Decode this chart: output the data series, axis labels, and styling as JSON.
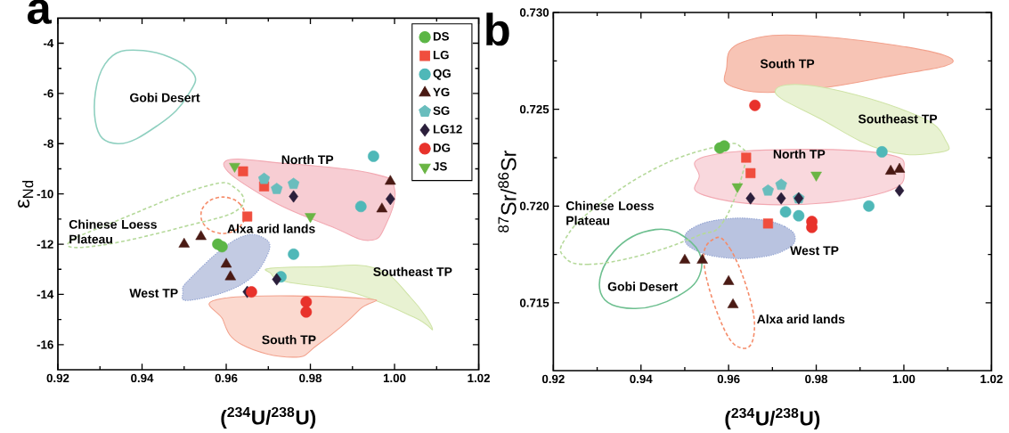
{
  "chart_data": [
    {
      "type": "scatter",
      "title": "a",
      "xlabel": "($^{234}$U/$^{238}$U)",
      "ylabel": "ε$_{Nd}$",
      "xlim": [
        0.92,
        1.02
      ],
      "ylim": [
        -17,
        -3
      ],
      "xticks": [
        0.92,
        0.94,
        0.96,
        0.98,
        {
          "value": 1,
          "label": "1.00"
        },
        1.02
      ],
      "yticks": [
        -16,
        -14,
        -12,
        -10,
        -8,
        -6,
        -4
      ],
      "legend": "top right",
      "annotations": [
        "Gobi Desert",
        "North TP",
        "Chinese Loess Plateau",
        "Alxa arid lands",
        "Southeast TP",
        "West TP",
        "South TP"
      ],
      "series": [
        {
          "name": "DS",
          "color": "#5cb646",
          "marker": "circle",
          "x": [
            0.958,
            0.959
          ],
          "values": [
            -12.0,
            -12.1
          ]
        },
        {
          "name": "LG",
          "color": "#f04e3e",
          "marker": "square",
          "x": [
            0.964,
            0.969,
            0.965
          ],
          "values": [
            -9.1,
            -9.7,
            -10.9
          ]
        },
        {
          "name": "QG",
          "color": "#4fb8b8",
          "marker": "circle",
          "x": [
            0.995,
            0.992,
            0.976,
            0.973
          ],
          "values": [
            -8.5,
            -10.5,
            -12.4,
            -13.3
          ]
        },
        {
          "name": "YG",
          "color": "#4a1a14",
          "marker": "triangle",
          "x": [
            0.999,
            0.997,
            0.95,
            0.954,
            0.96,
            0.961
          ],
          "values": [
            -9.5,
            -10.6,
            -12.0,
            -11.7,
            -12.8,
            -13.3
          ]
        },
        {
          "name": "SG",
          "color": "#69bdbd",
          "x": [
            0.969,
            0.972,
            0.976
          ],
          "values": [
            -9.4,
            -9.8,
            -9.6
          ]
        },
        {
          "name": "LG12",
          "color": "#2b1f3b",
          "marker": "diamond",
          "x": [
            0.976,
            0.999,
            0.965,
            0.972
          ],
          "values": [
            -10.1,
            -10.2,
            -13.9,
            -13.4
          ]
        },
        {
          "name": "DG",
          "color": "#e8322b",
          "marker": "circle",
          "x": [
            0.966,
            0.979,
            0.979
          ],
          "values": [
            -13.9,
            -14.3,
            -14.7
          ]
        },
        {
          "name": "JS",
          "color": "#6ab544",
          "marker": "triangle-down",
          "x": [
            0.962,
            0.98
          ],
          "values": [
            -8.9,
            -10.9
          ]
        }
      ]
    },
    {
      "type": "scatter",
      "title": "b",
      "xlabel": "($^{234}$U/$^{238}$U)",
      "ylabel": "$^{87}$Sr/$^{86}$Sr",
      "xlim": [
        0.92,
        1.02
      ],
      "ylim": [
        0.7115,
        0.73
      ],
      "xticks": [
        0.92,
        0.94,
        0.96,
        0.98,
        {
          "value": 1,
          "label": "1.00"
        },
        1.02
      ],
      "yticks": [
        0.715,
        {
          "value": 0.72,
          "label": "0.720"
        },
        0.725,
        {
          "value": 0.73,
          "label": "0.730"
        }
      ],
      "annotations": [
        "South TP",
        "Southeast TP",
        "North TP",
        "Chinese Loess Plateau",
        "West TP",
        "Gobi Desert",
        "Alxa arid lands"
      ],
      "series": [
        {
          "color": "#5cb646",
          "marker": "circle",
          "x": [
            0.958,
            0.959
          ],
          "values": [
            0.723,
            0.7231
          ]
        },
        {
          "color": "#f04e3e",
          "marker": "square",
          "x": [
            0.964,
            0.965,
            0.969
          ],
          "values": [
            0.7225,
            0.7217,
            0.7191
          ]
        },
        {
          "color": "#4fb8b8",
          "marker": "circle",
          "x": [
            0.995,
            0.992,
            0.973,
            0.976
          ],
          "values": [
            0.7228,
            0.72,
            0.7197,
            0.7195
          ]
        },
        {
          "color": "#4a1a14",
          "marker": "triangle",
          "x": [
            0.997,
            0.999,
            0.95,
            0.954,
            0.96,
            0.961
          ],
          "values": [
            0.7218,
            0.7219,
            0.7172,
            0.7172,
            0.7161,
            0.7149
          ]
        },
        {
          "color": "#69bdbd",
          "x": [
            0.969,
            0.972,
            0.976
          ],
          "values": [
            0.7208,
            0.7211,
            0.7204
          ]
        },
        {
          "color": "#2b1f3b",
          "marker": "diamond",
          "x": [
            0.965,
            0.972,
            0.976,
            0.999
          ],
          "values": [
            0.7204,
            0.7204,
            0.7204,
            0.7208
          ]
        },
        {
          "color": "#e8322b",
          "marker": "circle",
          "x": [
            0.966,
            0.979,
            0.979
          ],
          "values": [
            0.7252,
            0.7192,
            0.7189
          ]
        },
        {
          "color": "#6ab544",
          "marker": "triangle-down",
          "x": [
            0.962,
            0.98
          ],
          "values": [
            0.721,
            0.7216
          ]
        }
      ]
    }
  ]
}
